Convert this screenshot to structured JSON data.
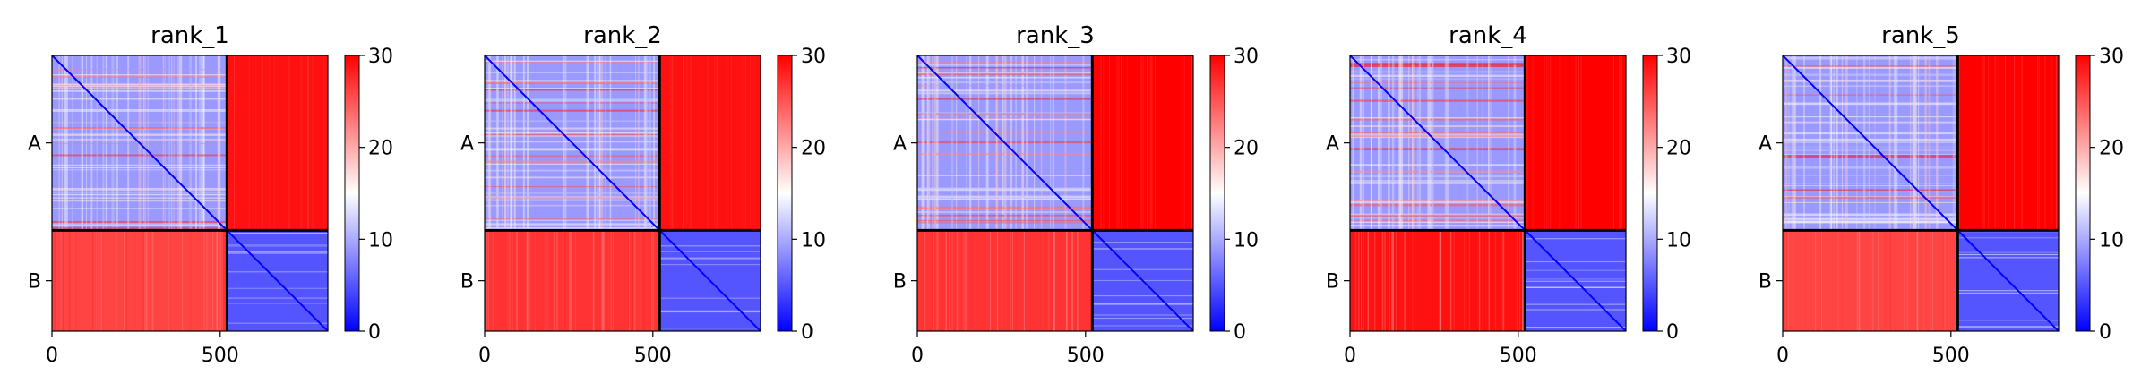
{
  "figure": {
    "heatmap_colors": {
      "low": "#0000ff",
      "mid": "#ffffff",
      "high": "#ff0000",
      "divider": "#000000"
    }
  },
  "chart_data": [
    {
      "type": "heatmap",
      "title": "rank_1",
      "xlabel": "",
      "ylabel": "",
      "x_ticks": [
        "0",
        "500"
      ],
      "x_tick_values": [
        0,
        500
      ],
      "xlim": [
        0,
        820
      ],
      "y_ticks": [
        "A",
        "B"
      ],
      "chain_boundary": 520,
      "chains": [
        {
          "name": "A",
          "range": [
            0,
            520
          ]
        },
        {
          "name": "B",
          "range": [
            520,
            820
          ]
        }
      ],
      "colorbar": {
        "min": 0,
        "max": 30,
        "ticks": [
          "0",
          "10",
          "20",
          "30"
        ],
        "tick_values": [
          0,
          10,
          20,
          30
        ],
        "colors": [
          "#0000ff",
          "#ffffff",
          "#ff0000"
        ]
      },
      "block_means": {
        "A-A": 9,
        "A-B": 29,
        "B-A": 26,
        "B-B": 5
      }
    },
    {
      "type": "heatmap",
      "title": "rank_2",
      "xlabel": "",
      "ylabel": "",
      "x_ticks": [
        "0",
        "500"
      ],
      "x_tick_values": [
        0,
        500
      ],
      "xlim": [
        0,
        820
      ],
      "y_ticks": [
        "A",
        "B"
      ],
      "chain_boundary": 520,
      "chains": [
        {
          "name": "A",
          "range": [
            0,
            520
          ]
        },
        {
          "name": "B",
          "range": [
            520,
            820
          ]
        }
      ],
      "colorbar": {
        "min": 0,
        "max": 30,
        "ticks": [
          "0",
          "10",
          "20",
          "30"
        ],
        "tick_values": [
          0,
          10,
          20,
          30
        ],
        "colors": [
          "#0000ff",
          "#ffffff",
          "#ff0000"
        ]
      },
      "block_means": {
        "A-A": 9,
        "A-B": 29,
        "B-A": 27,
        "B-B": 5
      }
    },
    {
      "type": "heatmap",
      "title": "rank_3",
      "xlabel": "",
      "ylabel": "",
      "x_ticks": [
        "0",
        "500"
      ],
      "x_tick_values": [
        0,
        500
      ],
      "xlim": [
        0,
        820
      ],
      "y_ticks": [
        "A",
        "B"
      ],
      "chain_boundary": 520,
      "chains": [
        {
          "name": "A",
          "range": [
            0,
            520
          ]
        },
        {
          "name": "B",
          "range": [
            520,
            820
          ]
        }
      ],
      "colorbar": {
        "min": 0,
        "max": 30,
        "ticks": [
          "0",
          "10",
          "20",
          "30"
        ],
        "tick_values": [
          0,
          10,
          20,
          30
        ],
        "colors": [
          "#0000ff",
          "#ffffff",
          "#ff0000"
        ]
      },
      "block_means": {
        "A-A": 9,
        "A-B": 30,
        "B-A": 27,
        "B-B": 5
      }
    },
    {
      "type": "heatmap",
      "title": "rank_4",
      "xlabel": "",
      "ylabel": "",
      "x_ticks": [
        "0",
        "500"
      ],
      "x_tick_values": [
        0,
        500
      ],
      "xlim": [
        0,
        820
      ],
      "y_ticks": [
        "A",
        "B"
      ],
      "chain_boundary": 520,
      "chains": [
        {
          "name": "A",
          "range": [
            0,
            520
          ]
        },
        {
          "name": "B",
          "range": [
            520,
            820
          ]
        }
      ],
      "colorbar": {
        "min": 0,
        "max": 30,
        "ticks": [
          "0",
          "10",
          "20",
          "30"
        ],
        "tick_values": [
          0,
          10,
          20,
          30
        ],
        "colors": [
          "#0000ff",
          "#ffffff",
          "#ff0000"
        ]
      },
      "block_means": {
        "A-A": 9,
        "A-B": 30,
        "B-A": 29,
        "B-B": 5
      }
    },
    {
      "type": "heatmap",
      "title": "rank_5",
      "xlabel": "",
      "ylabel": "",
      "x_ticks": [
        "0",
        "500"
      ],
      "x_tick_values": [
        0,
        500
      ],
      "xlim": [
        0,
        820
      ],
      "y_ticks": [
        "A",
        "B"
      ],
      "chain_boundary": 520,
      "chains": [
        {
          "name": "A",
          "range": [
            0,
            520
          ]
        },
        {
          "name": "B",
          "range": [
            520,
            820
          ]
        }
      ],
      "colorbar": {
        "min": 0,
        "max": 30,
        "ticks": [
          "0",
          "10",
          "20",
          "30"
        ],
        "tick_values": [
          0,
          10,
          20,
          30
        ],
        "colors": [
          "#0000ff",
          "#ffffff",
          "#ff0000"
        ]
      },
      "block_means": {
        "A-A": 9,
        "A-B": 30,
        "B-A": 26,
        "B-B": 5
      }
    }
  ]
}
